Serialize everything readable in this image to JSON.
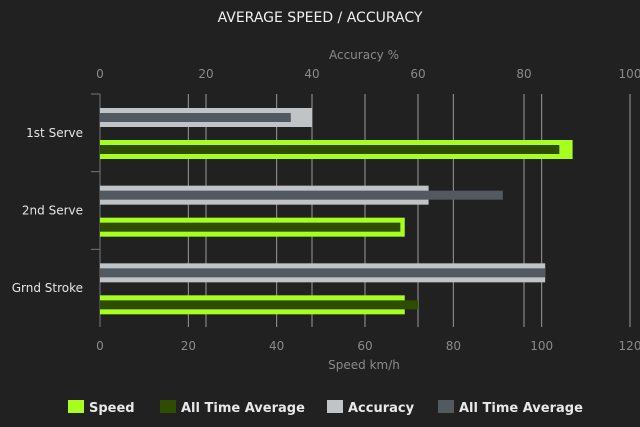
{
  "chart_data": {
    "type": "bar",
    "orientation": "horizontal",
    "title": "AVERAGE SPEED / ACCURACY",
    "categories": [
      "1st Serve",
      "2nd Serve",
      "Grnd Stroke"
    ],
    "x_top": {
      "label": "Accuracy %",
      "range": [
        0,
        100
      ],
      "ticks": [
        0,
        20,
        40,
        60,
        80,
        100
      ]
    },
    "x_bottom": {
      "label": "Speed km/h",
      "range": [
        0,
        120
      ],
      "ticks": [
        0,
        20,
        40,
        60,
        80,
        100,
        120
      ]
    },
    "grid": true,
    "legend_position": "bottom",
    "series": [
      {
        "name": "Speed",
        "axis": "speed",
        "color": "#a6ff1f",
        "values": [
          107,
          69,
          69
        ]
      },
      {
        "name": "All Time Average",
        "axis": "speed",
        "color": "#2f4d00",
        "values": [
          104,
          68,
          72
        ]
      },
      {
        "name": "Accuracy",
        "axis": "accuracy",
        "color": "#c0c4c6",
        "values": [
          40,
          62,
          84
        ]
      },
      {
        "name": "All Time Average",
        "axis": "accuracy",
        "color": "#535961",
        "values": [
          36,
          76,
          84
        ]
      }
    ]
  }
}
